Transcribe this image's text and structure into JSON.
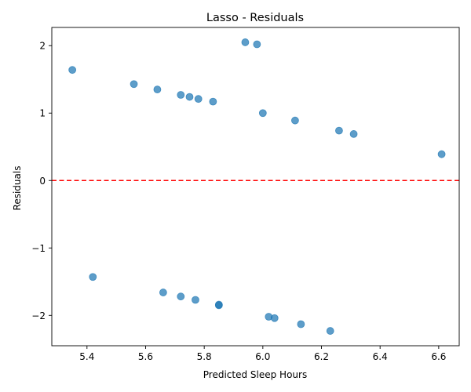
{
  "chart_data": {
    "type": "scatter",
    "title": "Lasso - Residuals",
    "xlabel": "Predicted Sleep Hours",
    "ylabel": "Residuals",
    "xlim": [
      5.28,
      6.67
    ],
    "ylim": [
      -2.45,
      2.27
    ],
    "xticks": [
      5.4,
      5.6,
      5.8,
      6.0,
      6.2,
      6.4,
      6.6
    ],
    "yticks": [
      -2,
      -1,
      0,
      1,
      2
    ],
    "xtick_labels": [
      "5.4",
      "5.6",
      "5.8",
      "6.0",
      "6.2",
      "6.4",
      "6.6"
    ],
    "ytick_labels": [
      "−2",
      "−1",
      "0",
      "1",
      "2"
    ],
    "grid": false,
    "reference_line": {
      "y": 0,
      "style": "dashed",
      "color": "#ff0000"
    },
    "marker_color": "#1f77b4",
    "points": [
      {
        "x": 5.35,
        "y": 1.64
      },
      {
        "x": 5.56,
        "y": 1.43
      },
      {
        "x": 5.64,
        "y": 1.35
      },
      {
        "x": 5.72,
        "y": 1.27
      },
      {
        "x": 5.75,
        "y": 1.24
      },
      {
        "x": 5.78,
        "y": 1.21
      },
      {
        "x": 5.83,
        "y": 1.17
      },
      {
        "x": 5.94,
        "y": 2.05
      },
      {
        "x": 5.98,
        "y": 2.02
      },
      {
        "x": 6.0,
        "y": 1.0
      },
      {
        "x": 6.11,
        "y": 0.89
      },
      {
        "x": 6.26,
        "y": 0.74
      },
      {
        "x": 6.31,
        "y": 0.69
      },
      {
        "x": 6.61,
        "y": 0.39
      },
      {
        "x": 5.42,
        "y": -1.43
      },
      {
        "x": 5.66,
        "y": -1.66
      },
      {
        "x": 5.72,
        "y": -1.72
      },
      {
        "x": 5.77,
        "y": -1.77
      },
      {
        "x": 5.85,
        "y": -1.84
      },
      {
        "x": 5.85,
        "y": -1.85
      },
      {
        "x": 6.02,
        "y": -2.02
      },
      {
        "x": 6.04,
        "y": -2.04
      },
      {
        "x": 6.13,
        "y": -2.13
      },
      {
        "x": 6.23,
        "y": -2.23
      }
    ]
  }
}
